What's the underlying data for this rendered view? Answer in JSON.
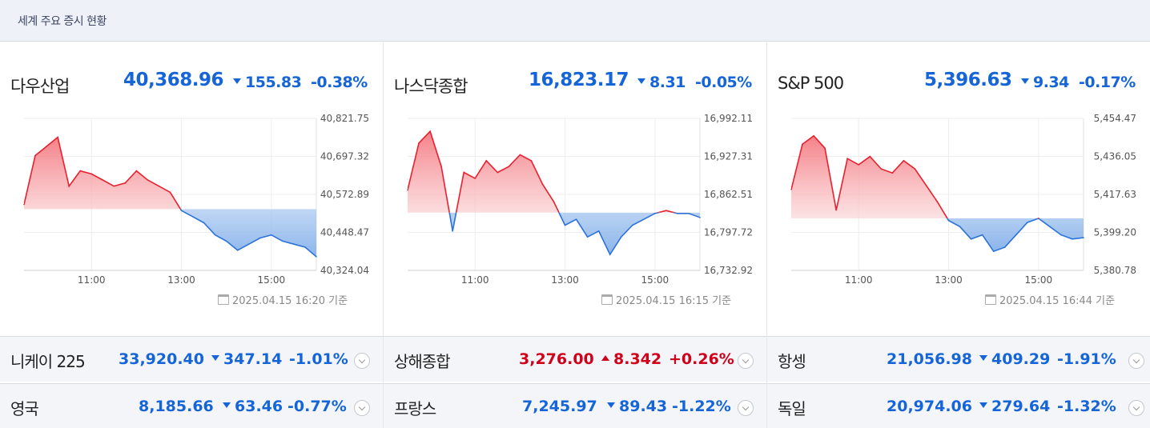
{
  "header": {
    "title": "세계 주요 증시 현황"
  },
  "panels": [
    {
      "name": "다우산업",
      "value": "40,368.96",
      "change": "155.83",
      "rate": "-0.38%",
      "direction": "down",
      "y_ticks": [
        "40,821.75",
        "40,697.32",
        "40,572.89",
        "40,448.47",
        "40,324.04"
      ],
      "x_ticks": [
        "11:00",
        "13:00",
        "15:00"
      ],
      "stamp": "2025.04.15 16:20 기준"
    },
    {
      "name": "나스닥종합",
      "value": "16,823.17",
      "change": "8.31",
      "rate": "-0.05%",
      "direction": "down",
      "y_ticks": [
        "16,992.11",
        "16,927.31",
        "16,862.51",
        "16,797.72",
        "16,732.92"
      ],
      "x_ticks": [
        "11:00",
        "13:00",
        "15:00"
      ],
      "stamp": "2025.04.15 16:15 기준"
    },
    {
      "name": "S&P 500",
      "value": "5,396.63",
      "change": "9.34",
      "rate": "-0.17%",
      "direction": "down",
      "y_ticks": [
        "5,454.47",
        "5,436.05",
        "5,417.63",
        "5,399.20",
        "5,380.78"
      ],
      "x_ticks": [
        "11:00",
        "13:00",
        "15:00"
      ],
      "stamp": "2025.04.15 16:44 기준"
    }
  ],
  "rows": [
    [
      {
        "name": "니케이 225",
        "value": "33,920.40",
        "change": "347.14",
        "rate": "-1.01%",
        "direction": "down"
      },
      {
        "name": "상해종합",
        "value": "3,276.00",
        "change": "8.342",
        "rate": "+0.26%",
        "direction": "up"
      },
      {
        "name": "항셍",
        "value": "21,056.98",
        "change": "409.29",
        "rate": "-1.91%",
        "direction": "down"
      }
    ],
    [
      {
        "name": "영국",
        "value": "8,185.66",
        "change": "63.46",
        "rate": "-0.77%",
        "direction": "down"
      },
      {
        "name": "프랑스",
        "value": "7,245.97",
        "change": "89.43",
        "rate": "-1.22%",
        "direction": "down"
      },
      {
        "name": "독일",
        "value": "20,974.06",
        "change": "279.64",
        "rate": "-1.32%",
        "direction": "down"
      }
    ]
  ],
  "colors": {
    "up": "#d0021b",
    "down": "#1565d8",
    "up_line": "#e8212e",
    "down_line": "#2b72d9"
  },
  "chart_data": [
    {
      "type": "line",
      "title": "다우산업",
      "x": [
        "09:30",
        "09:45",
        "10:00",
        "10:15",
        "10:30",
        "10:45",
        "11:00",
        "11:15",
        "11:30",
        "11:45",
        "12:00",
        "12:15",
        "12:30",
        "12:45",
        "13:00",
        "13:15",
        "13:30",
        "13:45",
        "14:00",
        "14:15",
        "14:30",
        "14:45",
        "15:00",
        "15:15",
        "15:30",
        "15:45",
        "16:00"
      ],
      "series": [
        {
          "values": [
            40540,
            40700,
            40730,
            40760,
            40600,
            40650,
            40640,
            40620,
            40600,
            40610,
            40650,
            40620,
            40600,
            40580,
            40520,
            40500,
            40480,
            40440,
            40420,
            40390,
            40410,
            40430,
            40440,
            40420,
            40410,
            40400,
            40368.96
          ]
        }
      ],
      "baseline": 40524.79,
      "ylim": [
        40324.04,
        40821.75
      ]
    },
    {
      "type": "line",
      "title": "나스닥종합",
      "x": [
        "09:30",
        "09:45",
        "10:00",
        "10:15",
        "10:30",
        "10:45",
        "11:00",
        "11:15",
        "11:30",
        "11:45",
        "12:00",
        "12:15",
        "12:30",
        "12:45",
        "13:00",
        "13:15",
        "13:30",
        "13:45",
        "14:00",
        "14:15",
        "14:30",
        "14:45",
        "15:00",
        "15:15",
        "15:30",
        "15:45",
        "16:00"
      ],
      "series": [
        {
          "values": [
            16870,
            16950,
            16970,
            16910,
            16800,
            16900,
            16890,
            16920,
            16900,
            16910,
            16930,
            16920,
            16880,
            16850,
            16810,
            16820,
            16790,
            16800,
            16760,
            16790,
            16810,
            16820,
            16830,
            16835,
            16830,
            16830,
            16823.17
          ]
        }
      ],
      "baseline": 16831.48,
      "ylim": [
        16732.92,
        16992.11
      ]
    },
    {
      "type": "line",
      "title": "S&P 500",
      "x": [
        "09:30",
        "09:45",
        "10:00",
        "10:15",
        "10:30",
        "10:45",
        "11:00",
        "11:15",
        "11:30",
        "11:45",
        "12:00",
        "12:15",
        "12:30",
        "12:45",
        "13:00",
        "13:15",
        "13:30",
        "13:45",
        "14:00",
        "14:15",
        "14:30",
        "14:45",
        "15:00",
        "15:15",
        "15:30",
        "15:45",
        "16:00"
      ],
      "series": [
        {
          "values": [
            5420,
            5442,
            5446,
            5440,
            5410,
            5435,
            5432,
            5436,
            5430,
            5428,
            5434,
            5430,
            5422,
            5414,
            5405,
            5402,
            5396,
            5398,
            5390,
            5392,
            5398,
            5404,
            5406,
            5402,
            5398,
            5396,
            5396.63
          ]
        }
      ],
      "baseline": 5405.97,
      "ylim": [
        5380.78,
        5454.47
      ]
    }
  ]
}
